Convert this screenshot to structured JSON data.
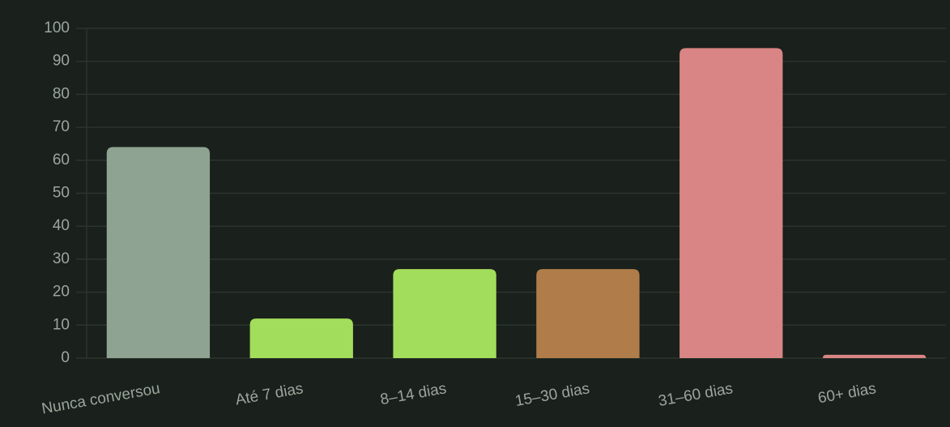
{
  "chart_data": {
    "type": "bar",
    "categories": [
      "Nunca conversou",
      "Até 7 dias",
      "8–14 dias",
      "15–30 dias",
      "31–60 dias",
      "60+ dias"
    ],
    "values": [
      64,
      12,
      27,
      27,
      94,
      1
    ],
    "colors": [
      "#8fa393",
      "#a3dd5c",
      "#a3dd5c",
      "#b07d4a",
      "#d98585",
      "#d98585"
    ],
    "ylim": [
      0,
      100
    ],
    "yticks": [
      0,
      10,
      20,
      30,
      40,
      50,
      60,
      70,
      80,
      90,
      100
    ],
    "grid": true
  }
}
